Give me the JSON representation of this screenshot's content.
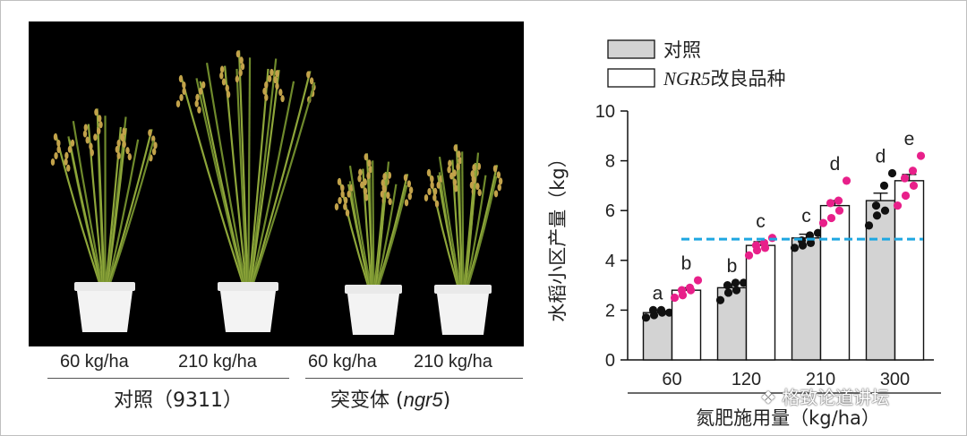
{
  "photo_panel": {
    "pot_labels": [
      "60 kg/ha",
      "210 kg/ha",
      "60 kg/ha",
      "210 kg/ha"
    ],
    "group_labels": [
      {
        "text": "对照（9311）",
        "italic": ""
      },
      {
        "text": "突变体 (",
        "italic": "ngr5",
        "suffix": ")"
      }
    ]
  },
  "chart_data": {
    "type": "bar",
    "ylabel": "水稻小区产量（kg）",
    "xlabel": "氮肥施用量（kg/ha）",
    "categories": [
      "60",
      "120",
      "210",
      "300"
    ],
    "ylim": [
      0,
      10
    ],
    "yticks": [
      "0",
      "2",
      "4",
      "6",
      "8",
      "10"
    ],
    "series": [
      {
        "name": "对照",
        "name_italic": "",
        "name_suffix": "",
        "color": "#d3d3d3",
        "dot_color": "#111111",
        "values": [
          1.9,
          2.9,
          4.9,
          6.4
        ],
        "errors": [
          0.1,
          0.15,
          0.15,
          0.3
        ],
        "points": [
          [
            1.7,
            1.8,
            1.9,
            2.0,
            2.0,
            1.9
          ],
          [
            2.4,
            2.7,
            2.8,
            3.0,
            3.1,
            3.1
          ],
          [
            4.5,
            4.6,
            4.7,
            4.8,
            5.0,
            5.1
          ],
          [
            5.4,
            5.8,
            6.0,
            6.2,
            7.0,
            7.5
          ]
        ],
        "letters": [
          "a",
          "b",
          "c",
          "d"
        ]
      },
      {
        "name": "",
        "name_italic": "NGR5",
        "name_suffix": "改良品种",
        "color": "#ffffff",
        "dot_color": "#e8208a",
        "values": [
          2.8,
          4.6,
          6.2,
          7.2
        ],
        "errors": [
          0.1,
          0.15,
          0.2,
          0.25
        ],
        "points": [
          [
            2.5,
            2.6,
            2.8,
            2.8,
            2.9,
            3.2
          ],
          [
            4.2,
            4.4,
            4.5,
            4.6,
            4.7,
            4.9
          ],
          [
            5.5,
            5.7,
            6.0,
            6.3,
            6.4,
            7.2
          ],
          [
            6.2,
            6.6,
            7.0,
            7.3,
            7.6,
            8.2
          ]
        ],
        "letters": [
          "b",
          "c",
          "d",
          "e"
        ]
      }
    ],
    "reference_line": {
      "y": 4.85,
      "color": "#1ea7e1",
      "style": "dashed"
    }
  },
  "watermark": {
    "text": "格致论道讲坛"
  }
}
